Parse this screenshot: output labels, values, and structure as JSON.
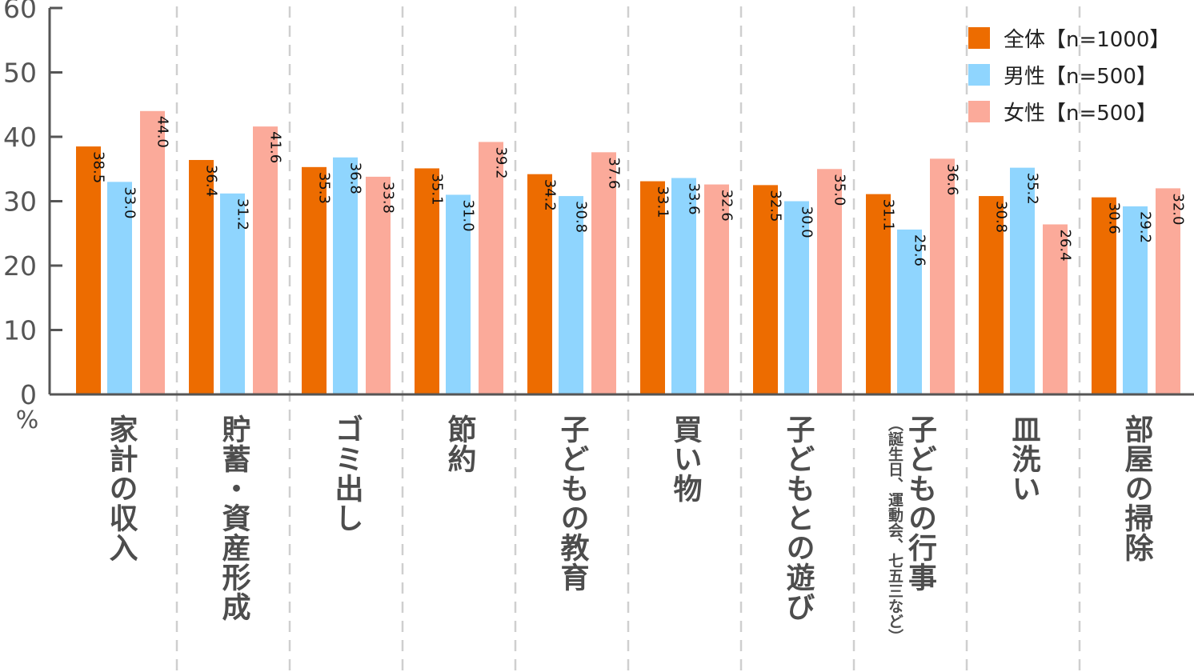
{
  "chart_data": {
    "type": "bar",
    "ylabel": "%",
    "ylim": [
      0,
      60
    ],
    "yticks": [
      0,
      10,
      20,
      30,
      40,
      50,
      60
    ],
    "grid": false,
    "legend_position": "top-right",
    "categories": [
      {
        "label": "家計の収入"
      },
      {
        "label": "貯蓄・資産形成"
      },
      {
        "label": "ゴミ出し"
      },
      {
        "label": "節約"
      },
      {
        "label": "子どもの教育"
      },
      {
        "label": "買い物"
      },
      {
        "label": "子どもとの遊び"
      },
      {
        "label": "子どもの行事",
        "sublabel": "（誕生日、運動会、七五三など）"
      },
      {
        "label": "皿洗い"
      },
      {
        "label": "部屋の掃除"
      }
    ],
    "series": [
      {
        "name": "全体【n=1000】",
        "color": "#ED6C00",
        "values": [
          38.5,
          36.4,
          35.3,
          35.1,
          34.2,
          33.1,
          32.5,
          31.1,
          30.8,
          30.6
        ]
      },
      {
        "name": "男性【n=500】",
        "color": "#8FD5FE",
        "values": [
          33.0,
          31.2,
          36.8,
          31.0,
          30.8,
          33.6,
          30.0,
          25.6,
          35.2,
          29.2
        ]
      },
      {
        "name": "女性【n=500】",
        "color": "#FBAA9A",
        "values": [
          44.0,
          41.6,
          33.8,
          39.2,
          37.6,
          32.6,
          35.0,
          36.6,
          26.4,
          32.0
        ]
      }
    ]
  }
}
